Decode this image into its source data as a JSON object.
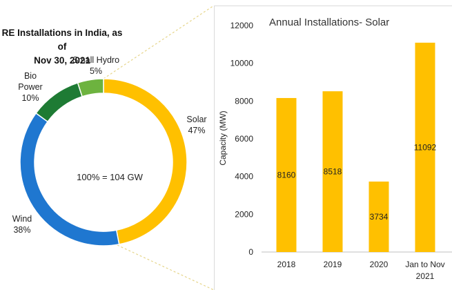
{
  "chart_data": [
    {
      "type": "pie",
      "style": "donut",
      "title": "RE Installations in India, as of Nov 30, 2021",
      "title_lines": [
        "RE Installations in India, as of",
        "Nov 30, 2021"
      ],
      "center_label": "100% = 104 GW",
      "slices": [
        {
          "name": "Solar",
          "value": 47,
          "label": "47%",
          "color": "#FFC000"
        },
        {
          "name": "Wind",
          "value": 38,
          "label": "38%",
          "color": "#1F77D0"
        },
        {
          "name": "Bio Power",
          "name_lines": [
            "Bio",
            "Power"
          ],
          "value": 10,
          "label": "10%",
          "color": "#1E7B34"
        },
        {
          "name": "Small Hydro",
          "value": 5,
          "label": "5%",
          "color": "#6DB33F"
        }
      ]
    },
    {
      "type": "bar",
      "title": "Annual Installations- Solar",
      "ylabel": "Capacity (MW)",
      "xlabel": "",
      "ylim": [
        0,
        12000
      ],
      "yticks": [
        "0",
        "2000",
        "4000",
        "6000",
        "8000",
        "10000",
        "12000"
      ],
      "categories": [
        "2018",
        "2019",
        "2020",
        "Jan to Nov 2021"
      ],
      "category_lines": [
        [
          "2018"
        ],
        [
          "2019"
        ],
        [
          "2020"
        ],
        [
          "Jan to Nov",
          "2021"
        ]
      ],
      "values": [
        8160,
        8518,
        3734,
        11092
      ],
      "data_labels": [
        "8160",
        "8518",
        "3734",
        "11092"
      ],
      "bar_color": "#FFC000",
      "grid": false,
      "legend": "none"
    }
  ]
}
